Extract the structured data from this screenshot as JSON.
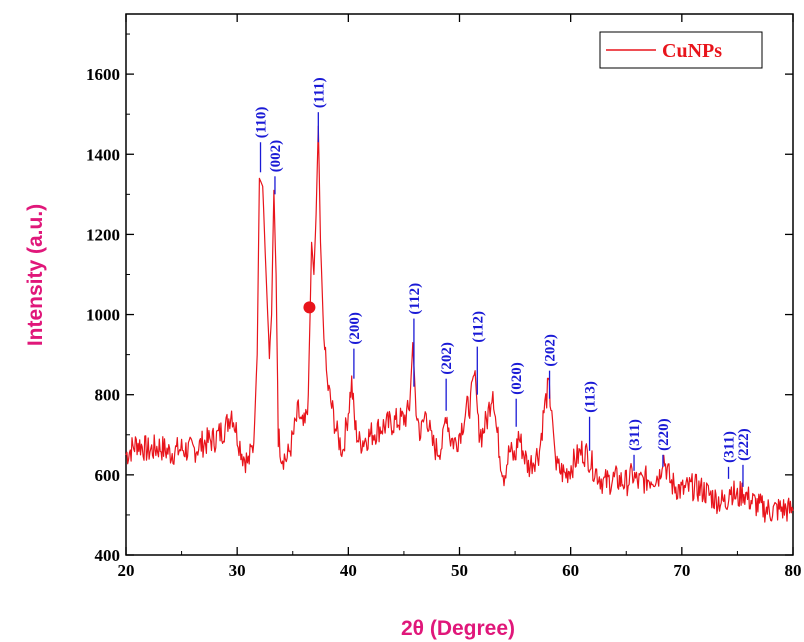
{
  "chart_data": {
    "type": "line",
    "title": "",
    "xlabel": "2θ (Degree)",
    "ylabel": "Intensity (a.u.)",
    "xlim": [
      20,
      80
    ],
    "ylim": [
      400,
      1750
    ],
    "xticks": [
      20,
      30,
      40,
      50,
      60,
      70,
      80
    ],
    "yticks": [
      400,
      600,
      800,
      1000,
      1200,
      1400,
      1600
    ],
    "grid": false,
    "legend_position": "top-right",
    "series": [
      {
        "name": "CuNPs",
        "color": "#e8141b",
        "x": [
          20.0,
          21.0,
          22.0,
          23.0,
          24.0,
          25.0,
          26.0,
          27.0,
          28.0,
          29.0,
          29.5,
          30.0,
          30.5,
          31.0,
          31.5,
          31.8,
          32.0,
          32.3,
          32.6,
          32.9,
          33.1,
          33.3,
          33.5,
          33.7,
          34.0,
          34.5,
          35.0,
          35.5,
          35.8,
          36.1,
          36.4,
          36.7,
          36.9,
          37.1,
          37.3,
          37.5,
          37.8,
          38.1,
          38.5,
          39.0,
          39.5,
          40.0,
          40.3,
          40.6,
          41.0,
          42.0,
          43.0,
          44.0,
          45.0,
          45.5,
          45.8,
          46.1,
          46.5,
          47.0,
          47.5,
          48.0,
          48.5,
          48.8,
          49.2,
          49.7,
          50.2,
          50.6,
          51.0,
          51.4,
          51.7,
          52.0,
          52.5,
          53.0,
          53.3,
          53.7,
          54.0,
          54.5,
          55.0,
          55.3,
          55.7,
          56.2,
          56.7,
          57.2,
          57.6,
          58.0,
          58.3,
          58.7,
          59.5,
          60.5,
          61.0,
          61.5,
          62.0,
          62.5,
          63.0,
          64.0,
          65.0,
          65.6,
          66.0,
          67.0,
          68.0,
          68.3,
          69.0,
          70.0,
          71.0,
          72.0,
          73.0,
          74.0,
          74.3,
          75.0,
          75.5,
          76.0,
          77.0,
          78.0,
          79.0,
          80.0
        ],
        "y": [
          650,
          680,
          660,
          670,
          655,
          665,
          660,
          680,
          690,
          720,
          760,
          700,
          650,
          630,
          680,
          900,
          1340,
          1320,
          1100,
          900,
          1000,
          1310,
          1100,
          700,
          650,
          640,
          690,
          760,
          720,
          720,
          800,
          1180,
          1100,
          1250,
          1470,
          1180,
          940,
          830,
          770,
          700,
          660,
          760,
          830,
          720,
          680,
          700,
          720,
          730,
          740,
          760,
          930,
          760,
          700,
          760,
          680,
          660,
          680,
          760,
          690,
          680,
          720,
          760,
          780,
          860,
          720,
          700,
          740,
          820,
          720,
          640,
          600,
          660,
          640,
          700,
          660,
          620,
          640,
          660,
          760,
          820,
          760,
          620,
          600,
          640,
          660,
          650,
          620,
          600,
          580,
          590,
          580,
          600,
          580,
          590,
          600,
          650,
          580,
          560,
          570,
          560,
          540,
          530,
          570,
          540,
          560,
          540,
          520,
          510,
          515,
          510
        ]
      }
    ],
    "annotations": [
      {
        "label": "(110)",
        "x": 32.1,
        "y": 1355,
        "top": 1430
      },
      {
        "label": "(002)",
        "x": 33.4,
        "y": 1300,
        "top": 1345
      },
      {
        "label": "(111)",
        "x": 37.3,
        "y": 1430,
        "top": 1505
      },
      {
        "label": "(200)",
        "x": 40.5,
        "y": 840,
        "top": 915
      },
      {
        "label": "(112)",
        "x": 45.9,
        "y": 820,
        "top": 990
      },
      {
        "label": "(202)",
        "x": 48.8,
        "y": 760,
        "top": 840
      },
      {
        "label": "(112)",
        "x": 51.6,
        "y": 800,
        "top": 920
      },
      {
        "label": "(020)",
        "x": 55.1,
        "y": 720,
        "top": 790
      },
      {
        "label": "(202)",
        "x": 58.1,
        "y": 790,
        "top": 860
      },
      {
        "label": "(113)",
        "x": 61.7,
        "y": 660,
        "top": 745
      },
      {
        "label": "(311)",
        "x": 65.7,
        "y": 610,
        "top": 650
      },
      {
        "label": "(220)",
        "x": 68.3,
        "y": 620,
        "top": 650
      },
      {
        "label": "(311)",
        "x": 74.2,
        "y": 590,
        "top": 620
      },
      {
        "label": "(222)",
        "x": 75.5,
        "y": 570,
        "top": 625
      }
    ],
    "markers": [
      {
        "x": 36.5,
        "y": 1018,
        "color": "#e8141b"
      }
    ]
  }
}
